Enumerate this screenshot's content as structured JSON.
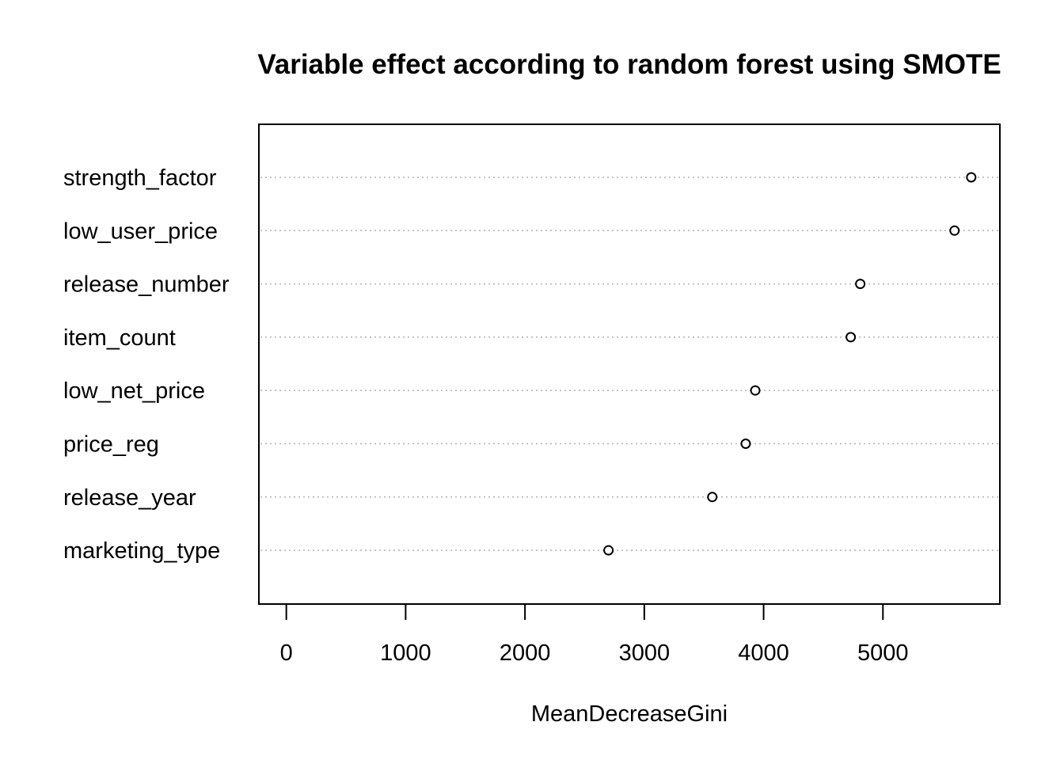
{
  "chart_data": {
    "type": "scatter",
    "subtype": "dotchart",
    "title": "Variable effect according to random forest using SMOTE",
    "xlabel": "MeanDecreaseGini",
    "ylabel": "",
    "xlim": [
      -230,
      5980
    ],
    "xticks": [
      0,
      1000,
      2000,
      3000,
      4000,
      5000
    ],
    "grid": "dotted horizontal per category",
    "categories": [
      "strength_factor",
      "low_user_price",
      "release_number",
      "item_count",
      "low_net_price",
      "price_reg",
      "release_year",
      "marketing_type"
    ],
    "values": [
      5740,
      5600,
      4810,
      4730,
      3930,
      3850,
      3570,
      2700
    ]
  }
}
